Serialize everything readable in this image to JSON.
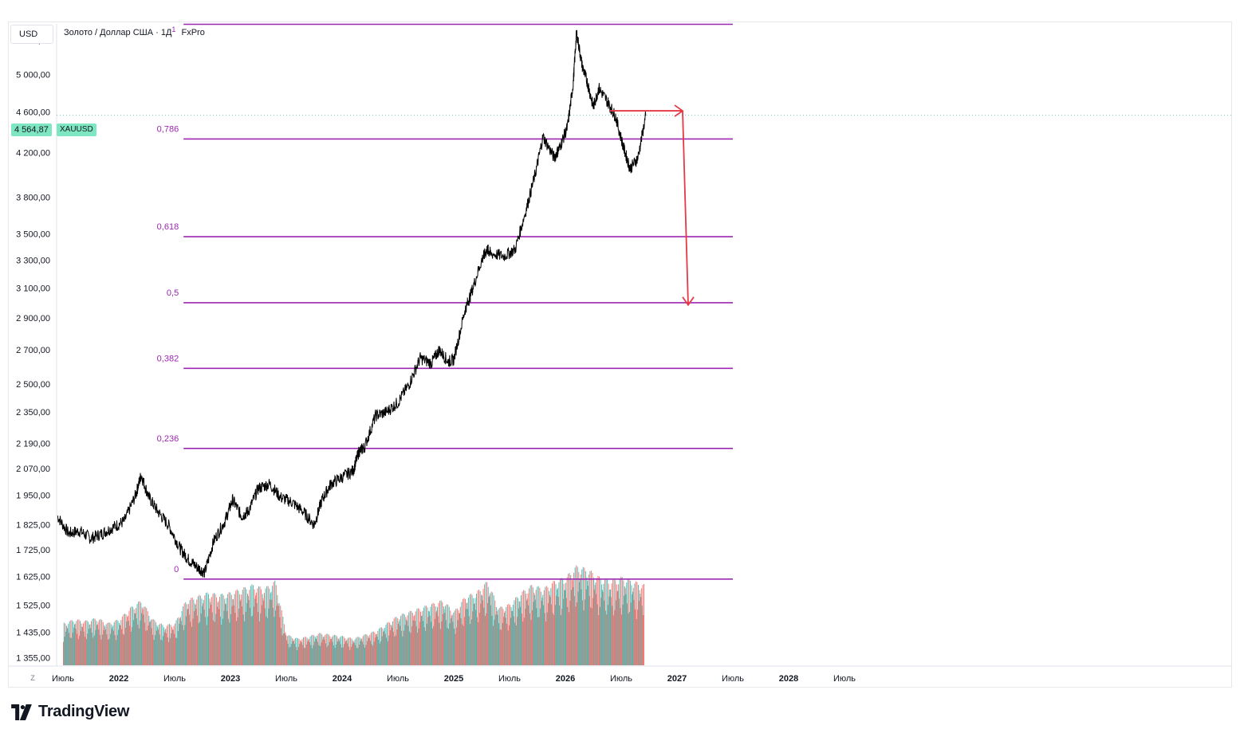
{
  "header": {
    "currency": "USD",
    "symbol_title": "Золото / Доллар США · 1Д",
    "symbol_sup": "1",
    "broker": "FxPro"
  },
  "current_price": {
    "value_label": "4 564,87",
    "symbol": "XAUUSD",
    "color": "#7ee6c0"
  },
  "z_button": "Z",
  "logo": {
    "text": "TradingView"
  },
  "colors": {
    "price_line": "#000000",
    "fib": "#9c27b0",
    "arrow": "#e53945",
    "vol_up": "#26a69a",
    "vol_down": "#ef5350",
    "grid": "#f0f3fa"
  },
  "chart_data": {
    "type": "line",
    "scale": "log",
    "ylim": [
      1330,
      5600
    ],
    "y_ticks": [
      {
        "value": 5400,
        "label": "5 400,00"
      },
      {
        "value": 5000,
        "label": "5 000,00"
      },
      {
        "value": 4600,
        "label": "4 600,00"
      },
      {
        "value": 4200,
        "label": "4 200,00"
      },
      {
        "value": 3800,
        "label": "3 800,00"
      },
      {
        "value": 3500,
        "label": "3 500,00"
      },
      {
        "value": 3300,
        "label": "3 300,00"
      },
      {
        "value": 3100,
        "label": "3 100,00"
      },
      {
        "value": 2900,
        "label": "2 900,00"
      },
      {
        "value": 2700,
        "label": "2 700,00"
      },
      {
        "value": 2500,
        "label": "2 500,00"
      },
      {
        "value": 2350,
        "label": "2 350,00"
      },
      {
        "value": 2190,
        "label": "2 190,00"
      },
      {
        "value": 2070,
        "label": "2 070,00"
      },
      {
        "value": 1950,
        "label": "1 950,00"
      },
      {
        "value": 1825,
        "label": "1 825,00"
      },
      {
        "value": 1725,
        "label": "1 725,00"
      },
      {
        "value": 1625,
        "label": "1 625,00"
      },
      {
        "value": 1525,
        "label": "1 525,00"
      },
      {
        "value": 1435,
        "label": "1 435,00"
      },
      {
        "value": 1355,
        "label": "1 355,00"
      }
    ],
    "xlim": [
      2021.45,
      2028.95
    ],
    "x_ticks": [
      {
        "value": 2021.5,
        "label": "Июль"
      },
      {
        "value": 2022.0,
        "label": "2022"
      },
      {
        "value": 2022.5,
        "label": "Июль"
      },
      {
        "value": 2023.0,
        "label": "2023"
      },
      {
        "value": 2023.5,
        "label": "Июль"
      },
      {
        "value": 2024.0,
        "label": "2024"
      },
      {
        "value": 2024.5,
        "label": "Июль"
      },
      {
        "value": 2025.0,
        "label": "2025"
      },
      {
        "value": 2025.5,
        "label": "Июль"
      },
      {
        "value": 2026.0,
        "label": "2026"
      },
      {
        "value": 2026.5,
        "label": "Июль"
      },
      {
        "value": 2027.0,
        "label": "2027"
      },
      {
        "value": 2027.5,
        "label": "Июль"
      },
      {
        "value": 2028.0,
        "label": "2028"
      },
      {
        "value": 2028.5,
        "label": "Июль"
      }
    ],
    "series": [
      {
        "x": [
          2021.45,
          2021.55,
          2021.65,
          2021.75,
          2021.85,
          2021.95,
          2022.05,
          2022.15,
          2022.2,
          2022.27,
          2022.35,
          2022.45,
          2022.55,
          2022.62,
          2022.7,
          2022.77,
          2022.85,
          2022.95,
          2023.02,
          2023.1,
          2023.16,
          2023.25,
          2023.35,
          2023.45,
          2023.55,
          2023.65,
          2023.75,
          2023.82,
          2023.9,
          2024.0,
          2024.1,
          2024.15,
          2024.2,
          2024.3,
          2024.4,
          2024.5,
          2024.6,
          2024.7,
          2024.8,
          2024.87,
          2024.95,
          2025.0,
          2025.1,
          2025.15,
          2025.25,
          2025.3,
          2025.33,
          2025.45,
          2025.55,
          2025.65,
          2025.73,
          2025.8,
          2025.9,
          2025.95,
          2026.02,
          2026.07,
          2026.1,
          2026.15,
          2026.2,
          2026.25,
          2026.3,
          2026.38,
          2026.45,
          2026.52,
          2026.58,
          2026.65,
          2026.72
        ],
        "y": [
          1860,
          1790,
          1800,
          1770,
          1790,
          1815,
          1840,
          1950,
          2040,
          1940,
          1880,
          1820,
          1730,
          1690,
          1660,
          1640,
          1760,
          1840,
          1930,
          1860,
          1880,
          1980,
          2000,
          1940,
          1920,
          1880,
          1825,
          1930,
          2000,
          2030,
          2060,
          2150,
          2170,
          2330,
          2350,
          2400,
          2500,
          2650,
          2620,
          2700,
          2630,
          2640,
          2950,
          3050,
          3300,
          3380,
          3350,
          3330,
          3380,
          3700,
          4000,
          4350,
          4150,
          4250,
          4450,
          4900,
          5500,
          5100,
          4900,
          4650,
          4850,
          4700,
          4550,
          4250,
          4050,
          4150,
          4560
        ]
      }
    ],
    "volume_range": [
      0,
      180
    ],
    "volume": [
      {
        "x": 2021.5,
        "v": 55,
        "up": true
      },
      {
        "x": 2021.6,
        "v": 60,
        "up": false
      },
      {
        "x": 2021.7,
        "v": 58,
        "up": true
      },
      {
        "x": 2021.8,
        "v": 62,
        "up": false
      },
      {
        "x": 2021.9,
        "v": 55,
        "up": true
      },
      {
        "x": 2022.0,
        "v": 60,
        "up": false
      },
      {
        "x": 2022.1,
        "v": 75,
        "up": true
      },
      {
        "x": 2022.2,
        "v": 85,
        "up": false
      },
      {
        "x": 2022.3,
        "v": 60,
        "up": true
      },
      {
        "x": 2022.4,
        "v": 52,
        "up": false
      },
      {
        "x": 2022.5,
        "v": 55,
        "up": true
      },
      {
        "x": 2022.6,
        "v": 85,
        "up": false
      },
      {
        "x": 2022.7,
        "v": 90,
        "up": true
      },
      {
        "x": 2022.8,
        "v": 95,
        "up": false
      },
      {
        "x": 2022.9,
        "v": 92,
        "up": true
      },
      {
        "x": 2023.0,
        "v": 95,
        "up": false
      },
      {
        "x": 2023.1,
        "v": 100,
        "up": true
      },
      {
        "x": 2023.2,
        "v": 105,
        "up": false
      },
      {
        "x": 2023.3,
        "v": 100,
        "up": true
      },
      {
        "x": 2023.4,
        "v": 110,
        "up": false
      },
      {
        "x": 2023.5,
        "v": 40,
        "up": true
      },
      {
        "x": 2023.6,
        "v": 35,
        "up": false
      },
      {
        "x": 2023.7,
        "v": 38,
        "up": true
      },
      {
        "x": 2023.8,
        "v": 42,
        "up": false
      },
      {
        "x": 2023.9,
        "v": 40,
        "up": true
      },
      {
        "x": 2024.0,
        "v": 38,
        "up": false
      },
      {
        "x": 2024.1,
        "v": 35,
        "up": true
      },
      {
        "x": 2024.2,
        "v": 40,
        "up": false
      },
      {
        "x": 2024.3,
        "v": 45,
        "up": true
      },
      {
        "x": 2024.4,
        "v": 55,
        "up": false
      },
      {
        "x": 2024.5,
        "v": 65,
        "up": true
      },
      {
        "x": 2024.6,
        "v": 70,
        "up": false
      },
      {
        "x": 2024.7,
        "v": 75,
        "up": true
      },
      {
        "x": 2024.8,
        "v": 80,
        "up": false
      },
      {
        "x": 2024.9,
        "v": 85,
        "up": true
      },
      {
        "x": 2025.0,
        "v": 70,
        "up": false
      },
      {
        "x": 2025.1,
        "v": 90,
        "up": true
      },
      {
        "x": 2025.2,
        "v": 95,
        "up": false
      },
      {
        "x": 2025.3,
        "v": 110,
        "up": true
      },
      {
        "x": 2025.4,
        "v": 75,
        "up": false
      },
      {
        "x": 2025.5,
        "v": 80,
        "up": true
      },
      {
        "x": 2025.6,
        "v": 95,
        "up": false
      },
      {
        "x": 2025.7,
        "v": 105,
        "up": true
      },
      {
        "x": 2025.8,
        "v": 100,
        "up": false
      },
      {
        "x": 2025.9,
        "v": 110,
        "up": true
      },
      {
        "x": 2026.0,
        "v": 115,
        "up": false
      },
      {
        "x": 2026.1,
        "v": 130,
        "up": true
      },
      {
        "x": 2026.2,
        "v": 125,
        "up": false
      },
      {
        "x": 2026.3,
        "v": 115,
        "up": true
      },
      {
        "x": 2026.4,
        "v": 110,
        "up": false
      },
      {
        "x": 2026.5,
        "v": 115,
        "up": true
      },
      {
        "x": 2026.6,
        "v": 110,
        "up": false
      },
      {
        "x": 2026.7,
        "v": 105,
        "up": true
      }
    ],
    "fib_levels": [
      {
        "ratio_label": "0,786",
        "price": 4328
      },
      {
        "ratio_label": "0,618",
        "price": 3478
      },
      {
        "ratio_label": "0,5",
        "price": 3000
      },
      {
        "ratio_label": "0,382",
        "price": 2590
      },
      {
        "ratio_label": "0,236",
        "price": 2165
      },
      {
        "ratio_label": "0",
        "price": 1616
      }
    ],
    "fib_top": 5595,
    "fib_x_range": [
      2022.58,
      2027.5
    ],
    "arrow_path": [
      {
        "x": 2026.4,
        "y": 4610
      },
      {
        "x": 2027.05,
        "y": 4610
      },
      {
        "x": 2027.1,
        "y": 2985
      }
    ]
  }
}
